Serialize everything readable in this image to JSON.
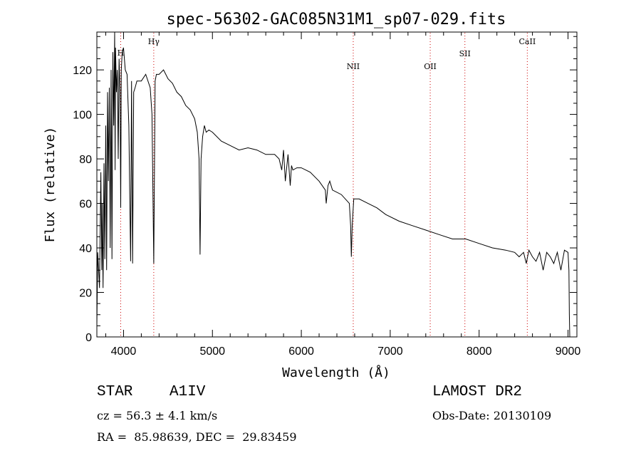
{
  "chart_data": {
    "type": "line",
    "title": "spec-56302-GAC085N31M1_sp07-029.fits",
    "xlabel": "Wavelength (Å)",
    "ylabel": "Flux (relative)",
    "xlim": [
      3700,
      9100
    ],
    "ylim": [
      0,
      137
    ],
    "x_ticks": [
      4000,
      5000,
      6000,
      7000,
      8000,
      9000
    ],
    "y_ticks": [
      0,
      20,
      40,
      60,
      80,
      100,
      120
    ],
    "grid": false,
    "line_color": "#000000",
    "marker_color": "#cc0000",
    "series": [
      {
        "x": [
          3700,
          3710,
          3720,
          3730,
          3745,
          3755,
          3760,
          3770,
          3780,
          3790,
          3800,
          3810,
          3820,
          3830,
          3840,
          3850,
          3860,
          3870,
          3880,
          3890,
          3900,
          3905,
          3910,
          3920,
          3930,
          3940,
          3950,
          3960,
          3968,
          3975,
          3985,
          4000,
          4020,
          4040,
          4060,
          4080,
          4090,
          4102,
          4114,
          4130,
          4150,
          4200,
          4250,
          4300,
          4320,
          4340,
          4355,
          4370,
          4400,
          4450,
          4500,
          4550,
          4600,
          4650,
          4700,
          4750,
          4800,
          4830,
          4850,
          4861,
          4872,
          4890,
          4910,
          4930,
          4960,
          5000,
          5100,
          5200,
          5300,
          5400,
          5500,
          5600,
          5700,
          5750,
          5780,
          5800,
          5820,
          5850,
          5875,
          5890,
          5905,
          5950,
          6000,
          6100,
          6200,
          6270,
          6280,
          6300,
          6320,
          6350,
          6450,
          6540,
          6555,
          6563,
          6572,
          6590,
          6650,
          6750,
          6850,
          6950,
          7100,
          7250,
          7400,
          7550,
          7700,
          7850,
          8000,
          8150,
          8300,
          8400,
          8450,
          8500,
          8530,
          8560,
          8600,
          8640,
          8680,
          8720,
          8760,
          8800,
          8840,
          8880,
          8920,
          8960,
          9000,
          9010,
          9015,
          9020
        ],
        "y": [
          5,
          38,
          30,
          22,
          74,
          30,
          60,
          22,
          78,
          35,
          95,
          30,
          110,
          70,
          112,
          40,
          120,
          35,
          128,
          95,
          137,
          75,
          130,
          110,
          120,
          80,
          125,
          110,
          58,
          120,
          128,
          130,
          120,
          118,
          95,
          34,
          115,
          33,
          110,
          112,
          115,
          115,
          118,
          112,
          100,
          33,
          115,
          118,
          118,
          120,
          116,
          114,
          110,
          108,
          104,
          102,
          98,
          92,
          80,
          37,
          80,
          90,
          95,
          92,
          93,
          92,
          88,
          86,
          84,
          85,
          84,
          82,
          82,
          80,
          75,
          84,
          70,
          82,
          68,
          77,
          75,
          76,
          76,
          74,
          70,
          66,
          60,
          68,
          70,
          66,
          64,
          60,
          50,
          36,
          50,
          62,
          62,
          60,
          58,
          55,
          52,
          50,
          48,
          46,
          44,
          44,
          42,
          40,
          39,
          38,
          36,
          38,
          33,
          39,
          36,
          34,
          38,
          30,
          38,
          36,
          33,
          38,
          30,
          39,
          38,
          30,
          10,
          0
        ]
      }
    ],
    "line_markers": [
      {
        "label": "H",
        "x": 3968
      },
      {
        "label": "Hγ",
        "x": 4340
      },
      {
        "label": "NII",
        "x": 6584
      },
      {
        "label": "OII",
        "x": 7450
      },
      {
        "label": "SII",
        "x": 7840
      },
      {
        "label": "CaII",
        "x": 8542
      }
    ]
  },
  "info": {
    "class_label": "STAR",
    "subclass": "A1IV",
    "cz": "cz = 56.3 ± 4.1 km/s",
    "coords": "RA =  85.98639, DEC =  29.83459",
    "survey": "LAMOST DR2",
    "obs_date": "Obs-Date: 20130109"
  }
}
